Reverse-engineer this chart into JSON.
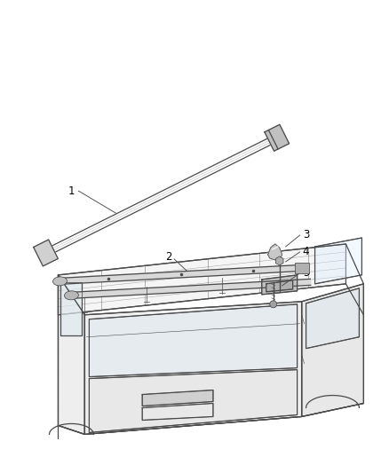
{
  "background_color": "#ffffff",
  "line_color": "#4a4a4a",
  "label_color": "#000000",
  "figsize": [
    4.38,
    5.33
  ],
  "dpi": 100,
  "lw_main": 0.9,
  "lw_thin": 0.55,
  "label_fontsize": 8.5
}
